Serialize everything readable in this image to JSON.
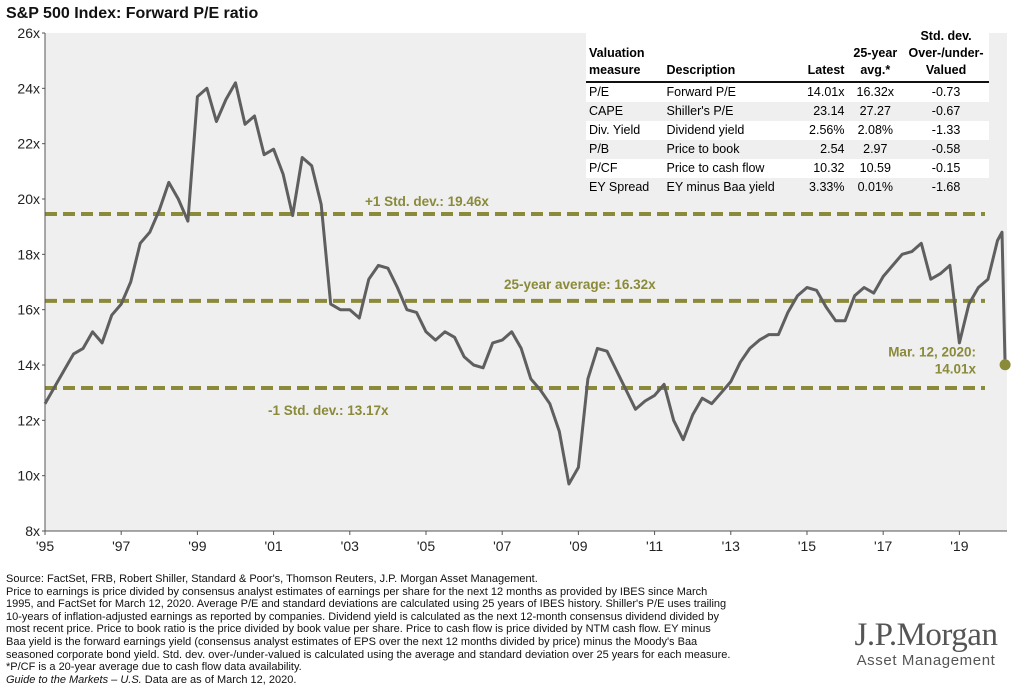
{
  "title": "S&P 500 Index: Forward P/E ratio",
  "chart_data": {
    "type": "line",
    "title": "S&P 500 Index: Forward P/E ratio",
    "xlabel": "",
    "ylabel": "",
    "ylim": [
      8,
      26
    ],
    "xlim": [
      1995.0,
      2020.25
    ],
    "y_ticks": [
      "8x",
      "10x",
      "12x",
      "14x",
      "16x",
      "18x",
      "20x",
      "22x",
      "24x",
      "26x"
    ],
    "x_ticks": [
      "'95",
      "'97",
      "'99",
      "'01",
      "'03",
      "'05",
      "'07",
      "'09",
      "'11",
      "'13",
      "'15",
      "'17",
      "'19"
    ],
    "line_color": "#5f5f5f",
    "ref_color": "#8a8a3a",
    "series": [
      {
        "x": [
          1995.0,
          1995.25,
          1995.5,
          1995.75,
          1996.0,
          1996.25,
          1996.5,
          1996.75,
          1997.0,
          1997.25,
          1997.5,
          1997.75,
          1998.0,
          1998.25,
          1998.5,
          1998.75,
          1999.0,
          1999.25,
          1999.5,
          1999.75,
          2000.0,
          2000.25,
          2000.5,
          2000.75,
          2001.0,
          2001.25,
          2001.5,
          2001.75,
          2002.0,
          2002.25,
          2002.5,
          2002.75,
          2003.0,
          2003.25,
          2003.5,
          2003.75,
          2004.0,
          2004.25,
          2004.5,
          2004.75,
          2005.0,
          2005.25,
          2005.5,
          2005.75,
          2006.0,
          2006.25,
          2006.5,
          2006.75,
          2007.0,
          2007.25,
          2007.5,
          2007.75,
          2008.0,
          2008.25,
          2008.5,
          2008.75,
          2009.0,
          2009.25,
          2009.5,
          2009.75,
          2010.0,
          2010.25,
          2010.5,
          2010.75,
          2011.0,
          2011.25,
          2011.5,
          2011.75,
          2012.0,
          2012.25,
          2012.5,
          2012.75,
          2013.0,
          2013.25,
          2013.5,
          2013.75,
          2014.0,
          2014.25,
          2014.5,
          2014.75,
          2015.0,
          2015.25,
          2015.5,
          2015.75,
          2016.0,
          2016.25,
          2016.5,
          2016.75,
          2017.0,
          2017.25,
          2017.5,
          2017.75,
          2018.0,
          2018.25,
          2018.5,
          2018.75,
          2019.0,
          2019.25,
          2019.5,
          2019.75,
          2020.0,
          2020.12,
          2020.2
        ],
        "y": [
          12.6,
          13.2,
          13.8,
          14.4,
          14.6,
          15.2,
          14.8,
          15.8,
          16.2,
          17.0,
          18.4,
          18.8,
          19.6,
          20.6,
          20.0,
          19.2,
          23.7,
          24.0,
          22.8,
          23.6,
          24.2,
          22.7,
          23.0,
          21.6,
          21.8,
          20.9,
          19.4,
          21.5,
          21.2,
          19.8,
          16.2,
          16.0,
          16.0,
          15.7,
          17.1,
          17.6,
          17.5,
          16.8,
          16.0,
          15.9,
          15.2,
          14.9,
          15.2,
          15.0,
          14.3,
          14.0,
          13.9,
          14.8,
          14.9,
          15.2,
          14.6,
          13.5,
          13.1,
          12.6,
          11.6,
          9.7,
          10.3,
          13.5,
          14.6,
          14.5,
          13.8,
          13.1,
          12.4,
          12.7,
          12.9,
          13.3,
          12.0,
          11.3,
          12.2,
          12.8,
          12.6,
          13.0,
          13.4,
          14.1,
          14.6,
          14.9,
          15.1,
          15.1,
          15.9,
          16.5,
          16.8,
          16.7,
          16.1,
          15.6,
          15.6,
          16.5,
          16.8,
          16.6,
          17.2,
          17.6,
          18.0,
          18.1,
          18.4,
          17.1,
          17.3,
          17.6,
          14.8,
          16.2,
          16.8,
          17.1,
          18.5,
          18.8,
          14.01
        ]
      }
    ],
    "reference_lines": [
      {
        "label": "+1 Std. dev.: 19.46x",
        "value": 19.46
      },
      {
        "label": "25-year average: 16.32x",
        "value": 16.32
      },
      {
        "label": "-1 Std. dev.: 13.17x",
        "value": 13.17
      }
    ],
    "annotation": {
      "line1": "Mar. 12, 2020:",
      "line2": "14.01x",
      "x": 2020.2,
      "y": 14.01
    }
  },
  "table": {
    "headers": {
      "measure": [
        "Valuation",
        "measure"
      ],
      "description": "Description",
      "latest": "Latest",
      "avg": [
        "25-year",
        "avg.*"
      ],
      "std": [
        "Std. dev.",
        "Over-/under-",
        "Valued"
      ]
    },
    "rows": [
      {
        "measure": "P/E",
        "description": "Forward P/E",
        "latest": "14.01x",
        "avg": "16.32x",
        "std": "-0.73"
      },
      {
        "measure": "CAPE",
        "description": "Shiller's P/E",
        "latest": "23.14",
        "avg": "27.27",
        "std": "-0.67"
      },
      {
        "measure": "Div. Yield",
        "description": "Dividend yield",
        "latest": "2.56%",
        "avg": "2.08%",
        "std": "-1.33"
      },
      {
        "measure": "P/B",
        "description": "Price to book",
        "latest": "2.54",
        "avg": "2.97",
        "std": "-0.58"
      },
      {
        "measure": "P/CF",
        "description": "Price to cash flow",
        "latest": "10.32",
        "avg": "10.59",
        "std": "-0.15"
      },
      {
        "measure": "EY Spread",
        "description": "EY minus Baa yield",
        "latest": "3.33%",
        "avg": "0.01%",
        "std": "-1.68"
      }
    ]
  },
  "footer": {
    "lines": [
      "Source: FactSet, FRB, Robert Shiller, Standard & Poor's, Thomson Reuters, J.P. Morgan Asset Management.",
      "Price to earnings is price divided by consensus analyst estimates of earnings per share for the next 12 months as provided by IBES since March",
      "1995, and FactSet for March 12, 2020. Average P/E and standard deviations are calculated using 25 years of IBES history. Shiller's P/E uses trailing",
      "10-years of inflation-adjusted earnings as reported by companies. Dividend yield is calculated as the next 12-month consensus dividend divided by",
      "most recent price. Price to book ratio is the price divided by book value per share. Price to cash flow is price divided by NTM cash flow. EY minus",
      "Baa yield is the forward earnings yield (consensus analyst estimates of EPS over the next 12 months divided by price) minus the Moody's Baa",
      "seasoned corporate bond yield. Std. dev. over-/under-valued is calculated using the average and standard deviation over 25 years for each measure.",
      "*P/CF is a 20-year average due to cash flow data availability."
    ],
    "guide": "Guide to the Markets – U.S.",
    "guide_rest": " Data are as of March 12, 2020."
  },
  "logo": {
    "main": "J.P.Morgan",
    "sub": "Asset Management"
  }
}
